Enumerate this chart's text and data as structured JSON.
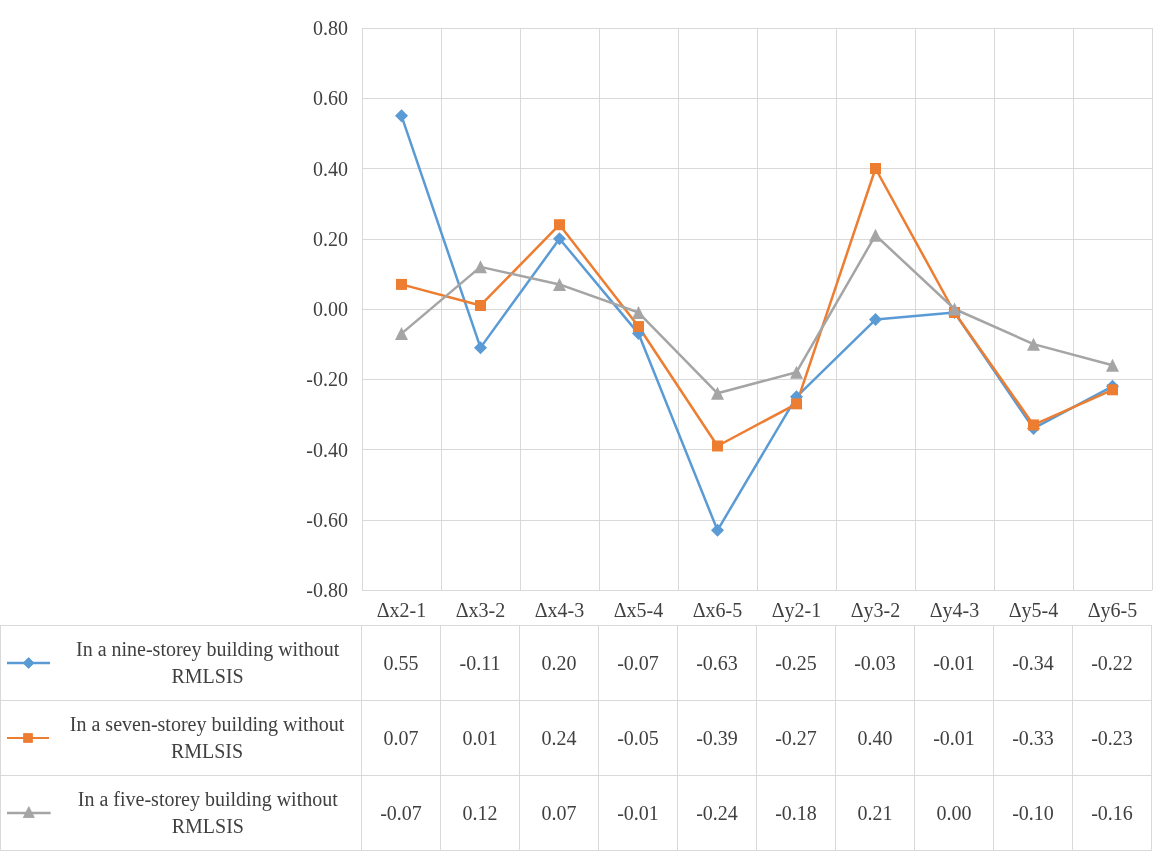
{
  "chart_data": {
    "type": "line",
    "categories": [
      "Δx2-1",
      "Δx3-2",
      "Δx4-3",
      "Δx5-4",
      "Δx6-5",
      "Δy2-1",
      "Δy3-2",
      "Δy4-3",
      "Δy5-4",
      "Δy6-5"
    ],
    "series": [
      {
        "name": "In a nine-storey building without RMLSIS",
        "color": "#5b9bd5",
        "marker": "diamond",
        "values": [
          0.55,
          -0.11,
          0.2,
          -0.07,
          -0.63,
          -0.25,
          -0.03,
          -0.01,
          -0.34,
          -0.22
        ],
        "value_labels": [
          "0.55",
          "-0.11",
          "0.20",
          "-0.07",
          "-0.63",
          "-0.25",
          "-0.03",
          "-0.01",
          "-0.34",
          "-0.22"
        ]
      },
      {
        "name": "In a seven-storey building without RMLSIS",
        "color": "#ed7d31",
        "marker": "square",
        "values": [
          0.07,
          0.01,
          0.24,
          -0.05,
          -0.39,
          -0.27,
          0.4,
          -0.01,
          -0.33,
          -0.23
        ],
        "value_labels": [
          "0.07",
          "0.01",
          "0.24",
          "-0.05",
          "-0.39",
          "-0.27",
          "0.40",
          "-0.01",
          "-0.33",
          "-0.23"
        ]
      },
      {
        "name": "In a five-storey building without RMLSIS",
        "color": "#a5a5a5",
        "marker": "triangle",
        "values": [
          -0.07,
          0.12,
          0.07,
          -0.01,
          -0.24,
          -0.18,
          0.21,
          0.0,
          -0.1,
          -0.16
        ],
        "value_labels": [
          "-0.07",
          "0.12",
          "0.07",
          "-0.01",
          "-0.24",
          "-0.18",
          "0.21",
          "0.00",
          "-0.10",
          "-0.16"
        ]
      }
    ],
    "ylim": [
      -0.8,
      0.8
    ],
    "yticks": [
      {
        "value": -0.8,
        "label": "-0.80"
      },
      {
        "value": -0.6,
        "label": "-0.60"
      },
      {
        "value": -0.4,
        "label": "-0.40"
      },
      {
        "value": -0.2,
        "label": "-0.20"
      },
      {
        "value": 0,
        "label": "0.00"
      },
      {
        "value": 0.2,
        "label": "0.20"
      },
      {
        "value": 0.4,
        "label": "0.40"
      },
      {
        "value": 0.6,
        "label": "0.60"
      },
      {
        "value": 0.8,
        "label": "0.80"
      }
    ],
    "grid": true,
    "legend": "bottom left",
    "line_style": "solid"
  }
}
